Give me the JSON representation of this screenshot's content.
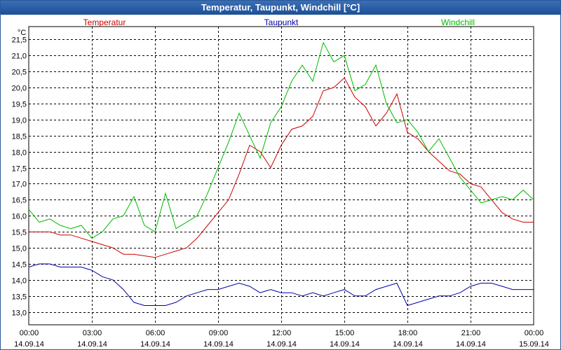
{
  "window": {
    "title": "Temperatur, Taupunkt, Windchill [°C]"
  },
  "colors": {
    "temperatur": "#cc0000",
    "taupunkt": "#0000aa",
    "windchill": "#00bb00",
    "grid": "#000000"
  },
  "chart_data": {
    "type": "line",
    "title": "Temperatur, Taupunkt, Windchill [°C]",
    "ylabel": "°C",
    "ylim": [
      12.6,
      21.9
    ],
    "grid": true,
    "legend": "top",
    "y_ticks": [
      "21,5",
      "21,0",
      "20,5",
      "20,0",
      "19,5",
      "19,0",
      "18,5",
      "18,0",
      "17,5",
      "17,0",
      "16,5",
      "16,0",
      "15,5",
      "15,0",
      "14,5",
      "14,0",
      "13,5",
      "13,0"
    ],
    "x_ticks": [
      {
        "time": "00:00",
        "date": "14.09.14"
      },
      {
        "time": "03:00",
        "date": "14.09.14"
      },
      {
        "time": "06:00",
        "date": "14.09.14"
      },
      {
        "time": "09:00",
        "date": "14.09.14"
      },
      {
        "time": "12:00",
        "date": "14.09.14"
      },
      {
        "time": "15:00",
        "date": "14.09.14"
      },
      {
        "time": "18:00",
        "date": "14.09.14"
      },
      {
        "time": "21:00",
        "date": "14.09.14"
      },
      {
        "time": "00:00",
        "date": "15.09.14"
      }
    ],
    "x_hours": [
      0,
      0.5,
      1,
      1.5,
      2,
      2.5,
      3,
      3.5,
      4,
      4.5,
      5,
      5.5,
      6,
      6.5,
      7,
      7.5,
      8,
      8.5,
      9,
      9.5,
      10,
      10.5,
      11,
      11.5,
      12,
      12.5,
      13,
      13.5,
      14,
      14.5,
      15,
      15.5,
      16,
      16.5,
      17,
      17.5,
      18,
      18.5,
      19,
      19.5,
      20,
      20.5,
      21,
      21.5,
      22,
      22.5,
      23,
      23.5,
      24
    ],
    "series": [
      {
        "name": "Temperatur",
        "color": "#cc0000",
        "values": [
          15.5,
          15.5,
          15.5,
          15.4,
          15.4,
          15.3,
          15.2,
          15.1,
          15.0,
          14.8,
          14.8,
          14.75,
          14.7,
          14.8,
          14.9,
          15.0,
          15.3,
          15.7,
          16.1,
          16.5,
          17.3,
          18.2,
          18.0,
          17.5,
          18.2,
          18.7,
          18.8,
          19.1,
          19.9,
          20.0,
          20.3,
          19.7,
          19.4,
          18.8,
          19.2,
          19.8,
          18.6,
          18.4,
          18.0,
          17.7,
          17.4,
          17.3,
          17.0,
          16.9,
          16.5,
          16.1,
          15.9,
          15.8,
          15.8
        ]
      },
      {
        "name": "Taupunkt",
        "color": "#0000aa",
        "values": [
          14.4,
          14.5,
          14.5,
          14.4,
          14.4,
          14.4,
          14.3,
          14.1,
          14.0,
          13.7,
          13.3,
          13.2,
          13.2,
          13.2,
          13.3,
          13.5,
          13.6,
          13.7,
          13.7,
          13.8,
          13.9,
          13.8,
          13.6,
          13.7,
          13.6,
          13.6,
          13.5,
          13.6,
          13.5,
          13.6,
          13.7,
          13.5,
          13.5,
          13.7,
          13.8,
          13.9,
          13.2,
          13.3,
          13.4,
          13.5,
          13.5,
          13.6,
          13.8,
          13.9,
          13.9,
          13.8,
          13.7,
          13.7,
          13.7
        ]
      },
      {
        "name": "Windchill",
        "color": "#00bb00",
        "values": [
          16.2,
          15.8,
          15.9,
          15.7,
          15.6,
          15.7,
          15.3,
          15.5,
          15.9,
          16.0,
          16.6,
          15.7,
          15.5,
          16.7,
          15.6,
          15.8,
          16.0,
          16.7,
          17.5,
          18.3,
          19.2,
          18.5,
          17.8,
          18.9,
          19.4,
          20.2,
          20.7,
          20.2,
          21.4,
          20.8,
          21.0,
          19.9,
          20.1,
          20.7,
          19.5,
          18.9,
          19.0,
          18.6,
          18.0,
          18.4,
          17.8,
          17.2,
          16.8,
          16.4,
          16.5,
          16.6,
          16.5,
          16.8,
          16.5
        ]
      }
    ]
  }
}
